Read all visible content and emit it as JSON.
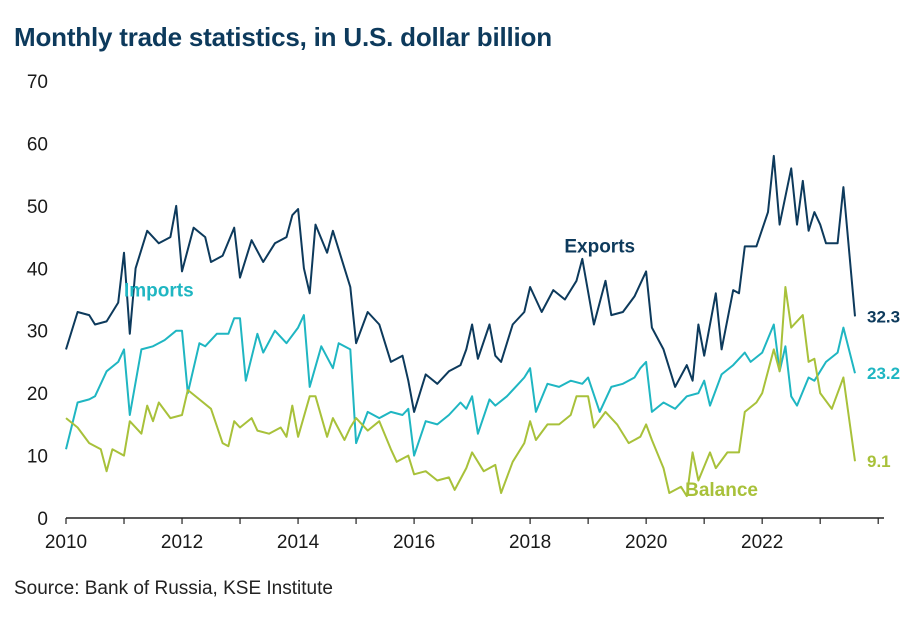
{
  "title": "Monthly trade statistics, in U.S. dollar billion",
  "source": "Source: Bank of Russia, KSE Institute",
  "chart_data": {
    "type": "line",
    "title": "Monthly trade statistics, in U.S. dollar billion",
    "xlabel": "",
    "ylabel": "",
    "xlim": [
      2010,
      2024.1
    ],
    "ylim": [
      0,
      70
    ],
    "yticks": [
      "0",
      "10",
      "20",
      "30",
      "40",
      "50",
      "60",
      "70"
    ],
    "xticks": [
      {
        "value": 2010,
        "label": "2010"
      },
      {
        "value": 2012,
        "label": "2012"
      },
      {
        "value": 2014,
        "label": "2014"
      },
      {
        "value": 2016,
        "label": "2016"
      },
      {
        "value": 2018,
        "label": "2018"
      },
      {
        "value": 2020,
        "label": "2020"
      },
      {
        "value": 2022,
        "label": "2022"
      }
    ],
    "grid": false,
    "legend": "inline labels",
    "series": [
      {
        "name": "Exports",
        "color": "#0d3a5c",
        "end_label": "32.3",
        "label_year": 2019.2,
        "label_value": 42.5,
        "points": [
          [
            2010.0,
            27
          ],
          [
            2010.2,
            33
          ],
          [
            2010.4,
            32.5
          ],
          [
            2010.5,
            31
          ],
          [
            2010.7,
            31.5
          ],
          [
            2010.9,
            34.5
          ],
          [
            2011.0,
            42.5
          ],
          [
            2011.1,
            29.5
          ],
          [
            2011.2,
            40
          ],
          [
            2011.4,
            46
          ],
          [
            2011.6,
            44
          ],
          [
            2011.8,
            45
          ],
          [
            2011.9,
            50
          ],
          [
            2012.0,
            39.5
          ],
          [
            2012.2,
            46.5
          ],
          [
            2012.4,
            45
          ],
          [
            2012.5,
            41
          ],
          [
            2012.7,
            42
          ],
          [
            2012.9,
            46.5
          ],
          [
            2013.0,
            38.5
          ],
          [
            2013.2,
            44.5
          ],
          [
            2013.4,
            41
          ],
          [
            2013.6,
            44
          ],
          [
            2013.8,
            45
          ],
          [
            2013.9,
            48.5
          ],
          [
            2014.0,
            49.5
          ],
          [
            2014.1,
            40
          ],
          [
            2014.2,
            36
          ],
          [
            2014.3,
            47
          ],
          [
            2014.5,
            42.5
          ],
          [
            2014.6,
            46
          ],
          [
            2014.8,
            40
          ],
          [
            2014.9,
            37
          ],
          [
            2015.0,
            28
          ],
          [
            2015.2,
            33
          ],
          [
            2015.4,
            31
          ],
          [
            2015.6,
            25
          ],
          [
            2015.8,
            26
          ],
          [
            2015.9,
            22
          ],
          [
            2016.0,
            17
          ],
          [
            2016.2,
            23
          ],
          [
            2016.4,
            21.5
          ],
          [
            2016.6,
            23.5
          ],
          [
            2016.8,
            24.5
          ],
          [
            2016.9,
            27
          ],
          [
            2017.0,
            31
          ],
          [
            2017.1,
            25.5
          ],
          [
            2017.3,
            31
          ],
          [
            2017.4,
            26
          ],
          [
            2017.5,
            25
          ],
          [
            2017.7,
            31
          ],
          [
            2017.9,
            33
          ],
          [
            2018.0,
            37
          ],
          [
            2018.2,
            33
          ],
          [
            2018.4,
            36.5
          ],
          [
            2018.6,
            35
          ],
          [
            2018.8,
            38
          ],
          [
            2018.9,
            41.5
          ],
          [
            2019.1,
            31
          ],
          [
            2019.3,
            38
          ],
          [
            2019.4,
            32.5
          ],
          [
            2019.6,
            33
          ],
          [
            2019.8,
            35.5
          ],
          [
            2020.0,
            39.5
          ],
          [
            2020.1,
            30.5
          ],
          [
            2020.3,
            27
          ],
          [
            2020.5,
            21
          ],
          [
            2020.7,
            24.5
          ],
          [
            2020.8,
            22
          ],
          [
            2020.9,
            31
          ],
          [
            2021.0,
            26
          ],
          [
            2021.2,
            36
          ],
          [
            2021.3,
            27
          ],
          [
            2021.5,
            36.5
          ],
          [
            2021.6,
            36
          ],
          [
            2021.7,
            43.5
          ],
          [
            2021.9,
            43.5
          ],
          [
            2022.1,
            49
          ],
          [
            2022.2,
            58
          ],
          [
            2022.3,
            47
          ],
          [
            2022.5,
            56
          ],
          [
            2022.6,
            47
          ],
          [
            2022.7,
            54
          ],
          [
            2022.8,
            46
          ],
          [
            2022.9,
            49
          ],
          [
            2023.0,
            47
          ],
          [
            2023.1,
            44
          ],
          [
            2023.3,
            44
          ],
          [
            2023.4,
            53
          ],
          [
            2023.6,
            32.3
          ]
        ]
      },
      {
        "name": "Imports",
        "color": "#1fb6c2",
        "end_label": "23.2",
        "label_year": 2011.6,
        "label_value": 35.5,
        "points": [
          [
            2010.0,
            11
          ],
          [
            2010.2,
            18.5
          ],
          [
            2010.4,
            19
          ],
          [
            2010.5,
            19.5
          ],
          [
            2010.7,
            23.5
          ],
          [
            2010.9,
            25
          ],
          [
            2011.0,
            27
          ],
          [
            2011.1,
            16.5
          ],
          [
            2011.3,
            27
          ],
          [
            2011.5,
            27.5
          ],
          [
            2011.7,
            28.5
          ],
          [
            2011.9,
            30
          ],
          [
            2012.0,
            30
          ],
          [
            2012.1,
            20
          ],
          [
            2012.3,
            28
          ],
          [
            2012.4,
            27.5
          ],
          [
            2012.6,
            29.5
          ],
          [
            2012.8,
            29.5
          ],
          [
            2012.9,
            32
          ],
          [
            2013.0,
            32
          ],
          [
            2013.1,
            22
          ],
          [
            2013.3,
            29.5
          ],
          [
            2013.4,
            26.5
          ],
          [
            2013.6,
            30
          ],
          [
            2013.8,
            28
          ],
          [
            2014.0,
            30.5
          ],
          [
            2014.1,
            32.5
          ],
          [
            2014.2,
            21
          ],
          [
            2014.4,
            27.5
          ],
          [
            2014.6,
            24
          ],
          [
            2014.7,
            28
          ],
          [
            2014.9,
            27
          ],
          [
            2015.0,
            12
          ],
          [
            2015.2,
            17
          ],
          [
            2015.4,
            16
          ],
          [
            2015.6,
            17
          ],
          [
            2015.8,
            16.5
          ],
          [
            2015.9,
            17.5
          ],
          [
            2016.0,
            10
          ],
          [
            2016.2,
            15.5
          ],
          [
            2016.4,
            15
          ],
          [
            2016.6,
            16.5
          ],
          [
            2016.8,
            18.5
          ],
          [
            2016.9,
            17.5
          ],
          [
            2017.0,
            19.5
          ],
          [
            2017.1,
            13.5
          ],
          [
            2017.3,
            19
          ],
          [
            2017.4,
            18
          ],
          [
            2017.6,
            19.5
          ],
          [
            2017.8,
            21.5
          ],
          [
            2017.9,
            22.5
          ],
          [
            2018.0,
            24
          ],
          [
            2018.1,
            17
          ],
          [
            2018.3,
            21.5
          ],
          [
            2018.5,
            21
          ],
          [
            2018.7,
            22
          ],
          [
            2018.9,
            21.5
          ],
          [
            2019.0,
            22.5
          ],
          [
            2019.2,
            17
          ],
          [
            2019.4,
            21
          ],
          [
            2019.6,
            21.5
          ],
          [
            2019.8,
            22.5
          ],
          [
            2019.9,
            24
          ],
          [
            2020.0,
            25
          ],
          [
            2020.1,
            17
          ],
          [
            2020.3,
            18.5
          ],
          [
            2020.5,
            17.5
          ],
          [
            2020.7,
            19.5
          ],
          [
            2020.9,
            20
          ],
          [
            2021.0,
            22
          ],
          [
            2021.1,
            18
          ],
          [
            2021.3,
            23
          ],
          [
            2021.5,
            24.5
          ],
          [
            2021.7,
            26.5
          ],
          [
            2021.8,
            25
          ],
          [
            2022.0,
            26.5
          ],
          [
            2022.2,
            31
          ],
          [
            2022.3,
            23.5
          ],
          [
            2022.4,
            27.5
          ],
          [
            2022.5,
            19.5
          ],
          [
            2022.6,
            18
          ],
          [
            2022.8,
            22.5
          ],
          [
            2022.9,
            22
          ],
          [
            2023.1,
            25
          ],
          [
            2023.3,
            26.5
          ],
          [
            2023.4,
            30.5
          ],
          [
            2023.6,
            23.2
          ]
        ]
      },
      {
        "name": "Balance",
        "color": "#a8c13a",
        "end_label": "9.1",
        "label_year": 2021.3,
        "label_value": 3.5,
        "points": [
          [
            2010.0,
            16
          ],
          [
            2010.2,
            14.5
          ],
          [
            2010.4,
            12
          ],
          [
            2010.6,
            11
          ],
          [
            2010.7,
            7.5
          ],
          [
            2010.8,
            11
          ],
          [
            2011.0,
            10
          ],
          [
            2011.1,
            15.5
          ],
          [
            2011.3,
            13.5
          ],
          [
            2011.4,
            18
          ],
          [
            2011.5,
            15.5
          ],
          [
            2011.6,
            18.5
          ],
          [
            2011.8,
            16
          ],
          [
            2012.0,
            16.5
          ],
          [
            2012.1,
            20.5
          ],
          [
            2012.3,
            19
          ],
          [
            2012.5,
            17.5
          ],
          [
            2012.7,
            12
          ],
          [
            2012.8,
            11.5
          ],
          [
            2012.9,
            15.5
          ],
          [
            2013.0,
            14.5
          ],
          [
            2013.2,
            16
          ],
          [
            2013.3,
            14
          ],
          [
            2013.5,
            13.5
          ],
          [
            2013.7,
            14.5
          ],
          [
            2013.8,
            13
          ],
          [
            2013.9,
            18
          ],
          [
            2014.0,
            13
          ],
          [
            2014.2,
            19.5
          ],
          [
            2014.3,
            19.5
          ],
          [
            2014.5,
            13
          ],
          [
            2014.6,
            16
          ],
          [
            2014.8,
            12.5
          ],
          [
            2014.9,
            14.5
          ],
          [
            2015.0,
            16
          ],
          [
            2015.2,
            14
          ],
          [
            2015.4,
            15.5
          ],
          [
            2015.6,
            11
          ],
          [
            2015.7,
            9
          ],
          [
            2015.9,
            10
          ],
          [
            2016.0,
            7
          ],
          [
            2016.2,
            7.5
          ],
          [
            2016.4,
            6
          ],
          [
            2016.6,
            6.5
          ],
          [
            2016.7,
            4.5
          ],
          [
            2016.9,
            8
          ],
          [
            2017.0,
            10.5
          ],
          [
            2017.2,
            7.5
          ],
          [
            2017.4,
            8.5
          ],
          [
            2017.5,
            4
          ],
          [
            2017.7,
            9
          ],
          [
            2017.9,
            12
          ],
          [
            2018.0,
            15.5
          ],
          [
            2018.1,
            12.5
          ],
          [
            2018.3,
            15
          ],
          [
            2018.5,
            15
          ],
          [
            2018.7,
            16.5
          ],
          [
            2018.8,
            19.5
          ],
          [
            2019.0,
            19.5
          ],
          [
            2019.1,
            14.5
          ],
          [
            2019.3,
            17
          ],
          [
            2019.5,
            15
          ],
          [
            2019.7,
            12
          ],
          [
            2019.9,
            13
          ],
          [
            2020.0,
            15
          ],
          [
            2020.1,
            12.5
          ],
          [
            2020.3,
            8
          ],
          [
            2020.4,
            4
          ],
          [
            2020.6,
            5
          ],
          [
            2020.7,
            3.5
          ],
          [
            2020.8,
            10.5
          ],
          [
            2020.9,
            6
          ],
          [
            2021.1,
            10.5
          ],
          [
            2021.2,
            8
          ],
          [
            2021.4,
            10.5
          ],
          [
            2021.6,
            10.5
          ],
          [
            2021.7,
            17
          ],
          [
            2021.9,
            18.5
          ],
          [
            2022.0,
            20
          ],
          [
            2022.2,
            27
          ],
          [
            2022.3,
            23.5
          ],
          [
            2022.4,
            37
          ],
          [
            2022.5,
            30.5
          ],
          [
            2022.7,
            32.5
          ],
          [
            2022.8,
            25
          ],
          [
            2022.9,
            25.5
          ],
          [
            2023.0,
            20
          ],
          [
            2023.2,
            17.5
          ],
          [
            2023.4,
            22.5
          ],
          [
            2023.6,
            9.1
          ]
        ]
      }
    ]
  }
}
